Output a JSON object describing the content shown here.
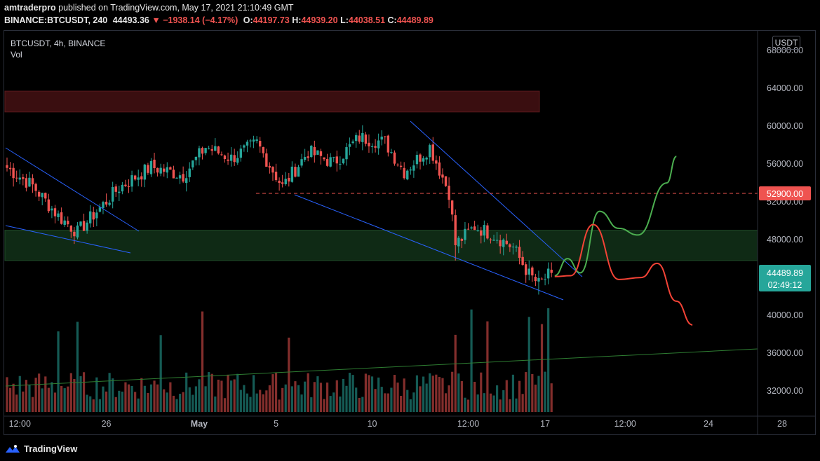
{
  "header": {
    "publisher": "amtraderpro",
    "published_text": "published on TradingView.com, May 17, 2021 21:10:49 GMT",
    "symbol_line": "BINANCE:BTCUSDT, 240",
    "last_price": "44493.36",
    "change": "−1938.14 (−4.17%)",
    "o_label": "O:",
    "o_value": "44197.73",
    "h_label": "H:",
    "h_value": "44939.20",
    "l_label": "L:",
    "l_value": "44038.51",
    "c_label": "C:",
    "c_value": "44489.89"
  },
  "legend": {
    "title": "BTCUSDT, 4h, BINANCE",
    "volume": "Vol"
  },
  "currency_button": "USDT",
  "footer": {
    "brand": "TradingView"
  },
  "colors": {
    "up": "#26a69a",
    "down": "#ef5350",
    "trendline": "#2962ff",
    "resistance_zone": "#3a0e10",
    "support_zone": "#0f2a15",
    "green_projection": "#4caf50",
    "red_projection": "#f44336",
    "price_tag": "#26a69a",
    "level_tag": "#ef5350"
  },
  "chart_data": {
    "type": "candlestick",
    "title": "BTCUSDT, 4h, BINANCE",
    "ylim": [
      29500,
      70000
    ],
    "y_ticks": [
      "32000.00",
      "36000.00",
      "40000.00",
      "44000.00",
      "48000.00",
      "52000.00",
      "56000.00",
      "60000.00",
      "64000.00",
      "68000.00"
    ],
    "y_tick_values": [
      32000,
      36000,
      40000,
      44000,
      48000,
      52000,
      56000,
      60000,
      64000,
      68000
    ],
    "x_ticks": [
      "12:00",
      "26",
      "May",
      "5",
      "10",
      "12:00",
      "17",
      "12:00",
      "24",
      "28"
    ],
    "x_tick_bars": [
      4,
      31,
      60,
      84,
      114,
      144,
      168,
      193,
      219,
      242
    ],
    "last_price_label": "44489.89",
    "countdown_label": "02:49:12",
    "level_label": "52900.00",
    "level_value": 52900,
    "resistance_zone": [
      61500,
      63700
    ],
    "support_zone": [
      45800,
      49000
    ],
    "key_closes": [
      {
        "bar": 0,
        "close": 55600
      },
      {
        "bar": 8,
        "close": 53700
      },
      {
        "bar": 16,
        "close": 50500
      },
      {
        "bar": 22,
        "close": 48800
      },
      {
        "bar": 28,
        "close": 51000
      },
      {
        "bar": 35,
        "close": 53500
      },
      {
        "bar": 45,
        "close": 55700
      },
      {
        "bar": 55,
        "close": 54800
      },
      {
        "bar": 62,
        "close": 57800
      },
      {
        "bar": 70,
        "close": 56600
      },
      {
        "bar": 78,
        "close": 58200
      },
      {
        "bar": 86,
        "close": 53600
      },
      {
        "bar": 94,
        "close": 57300
      },
      {
        "bar": 102,
        "close": 56100
      },
      {
        "bar": 110,
        "close": 58800
      },
      {
        "bar": 118,
        "close": 58300
      },
      {
        "bar": 124,
        "close": 55200
      },
      {
        "bar": 132,
        "close": 57800
      },
      {
        "bar": 138,
        "close": 53000
      },
      {
        "bar": 140,
        "close": 47500
      },
      {
        "bar": 146,
        "close": 49400
      },
      {
        "bar": 152,
        "close": 48500
      },
      {
        "bar": 158,
        "close": 47200
      },
      {
        "bar": 163,
        "close": 44300
      },
      {
        "bar": 166,
        "close": 43300
      },
      {
        "bar": 170,
        "close": 44490
      }
    ],
    "volume_note": "Volume histogram at bottom pane, colored by candle direction",
    "projections": [
      {
        "name": "",
        "color": "#4caf50",
        "points": [
          [
            171,
            44200
          ],
          [
            175,
            46000
          ],
          [
            179,
            44500
          ],
          [
            185,
            51000
          ],
          [
            191,
            49200
          ],
          [
            197,
            48500
          ],
          [
            206,
            54000
          ],
          [
            209,
            56800
          ]
        ]
      },
      {
        "name": "",
        "color": "#f44336",
        "points": [
          [
            171,
            44100
          ],
          [
            176,
            44200
          ],
          [
            183,
            49600
          ],
          [
            191,
            43800
          ],
          [
            198,
            44000
          ],
          [
            203,
            45500
          ],
          [
            209,
            41500
          ],
          [
            214,
            39000
          ]
        ]
      }
    ]
  }
}
